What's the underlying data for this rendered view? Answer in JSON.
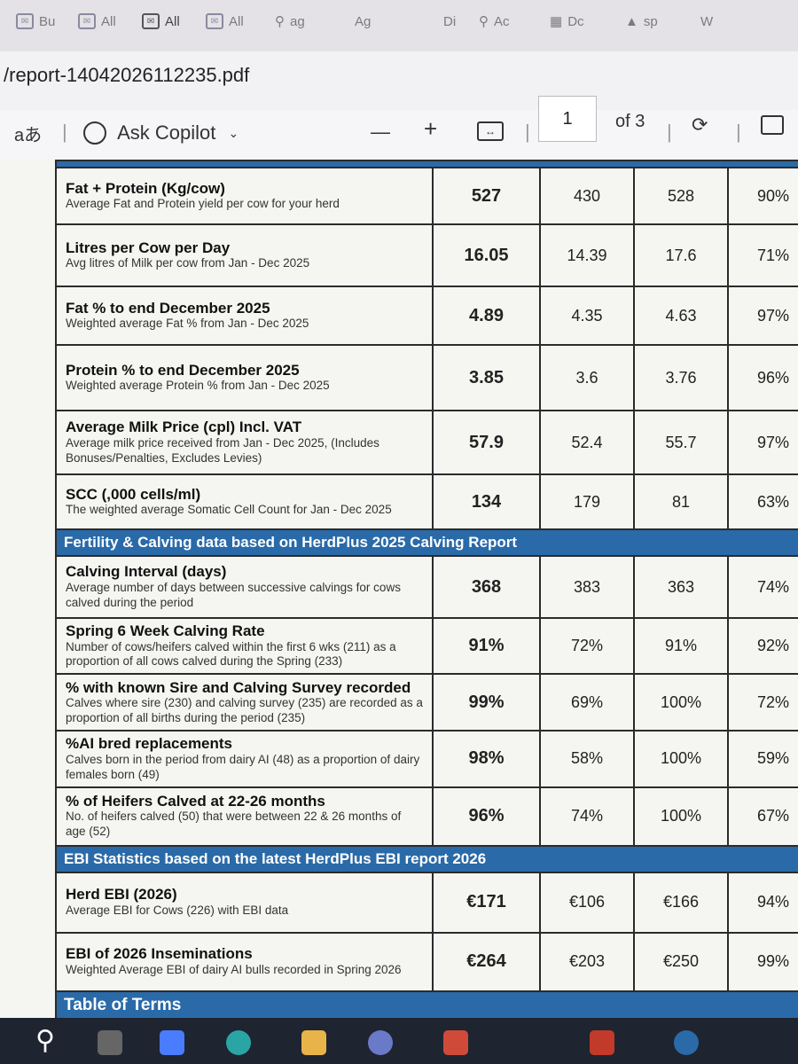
{
  "browser": {
    "tabs": [
      "Bu",
      "All",
      "All",
      "All",
      "ag",
      "Ag",
      "Di",
      "Ac",
      "Dc",
      "sp",
      "W"
    ],
    "url": "/report-14042026112235.pdf"
  },
  "pdf_toolbar": {
    "read_aloud_label": "aあ",
    "copilot_label": "Ask Copilot",
    "zoom_out": "—",
    "zoom_in": "+",
    "current_page": "1",
    "page_total": "of 3"
  },
  "report": {
    "rows": [
      {
        "label": "Fat + Protein (Kg/cow)",
        "sub": "Average Fat and Protein yield per cow for your herd",
        "v1": "527",
        "v2": "430",
        "v3": "528",
        "v4": "90%"
      },
      {
        "label": "Litres per Cow per Day",
        "sub": "Avg litres of Milk per cow from Jan - Dec 2025",
        "v1": "16.05",
        "v2": "14.39",
        "v3": "17.6",
        "v4": "71%"
      },
      {
        "label": "Fat % to end December 2025",
        "sub": "Weighted average Fat % from Jan - Dec 2025",
        "v1": "4.89",
        "v2": "4.35",
        "v3": "4.63",
        "v4": "97%"
      },
      {
        "label": "Protein % to end December 2025",
        "sub": "Weighted average Protein % from Jan - Dec 2025",
        "v1": "3.85",
        "v2": "3.6",
        "v3": "3.76",
        "v4": "96%"
      },
      {
        "label": "Average Milk Price (cpl) Incl. VAT",
        "sub": "Average milk price received from Jan - Dec 2025, (Includes Bonuses/Penalties, Excludes Levies)",
        "v1": "57.9",
        "v2": "52.4",
        "v3": "55.7",
        "v4": "97%"
      },
      {
        "label": "SCC (,000 cells/ml)",
        "sub": "The weighted average Somatic Cell Count for Jan - Dec 2025",
        "v1": "134",
        "v2": "179",
        "v3": "81",
        "v4": "63%"
      }
    ],
    "section_fertility": "Fertility & Calving data based on HerdPlus 2025 Calving Report",
    "fertility_rows": [
      {
        "label": "Calving Interval (days)",
        "sub": "Average number of days between successive calvings for cows calved during the period",
        "v1": "368",
        "v2": "383",
        "v3": "363",
        "v4": "74%"
      },
      {
        "label": "Spring 6 Week Calving Rate",
        "sub": "Number of cows/heifers calved within the first 6 wks (211) as a proportion of all cows calved during the Spring (233)",
        "v1": "91%",
        "v2": "72%",
        "v3": "91%",
        "v4": "92%"
      },
      {
        "label": "% with known Sire and Calving Survey recorded",
        "sub": "Calves where sire (230) and calving survey (235) are recorded as a proportion of all births during the period (235)",
        "v1": "99%",
        "v2": "69%",
        "v3": "100%",
        "v4": "72%"
      },
      {
        "label": "%AI bred replacements",
        "sub": "Calves born in the period from dairy AI (48) as a proportion of dairy females born (49)",
        "v1": "98%",
        "v2": "58%",
        "v3": "100%",
        "v4": "59%"
      },
      {
        "label": "% of Heifers Calved at 22-26 months",
        "sub": "No. of heifers calved (50) that were between 22 & 26 months of age (52)",
        "v1": "96%",
        "v2": "74%",
        "v3": "100%",
        "v4": "67%"
      }
    ],
    "section_ebi": "EBI Statistics based on the latest HerdPlus EBI report 2026",
    "ebi_rows": [
      {
        "label": "Herd EBI (2026)",
        "sub": "Average EBI for Cows (226) with EBI data",
        "v1": "€171",
        "v2": "€106",
        "v3": "€166",
        "v4": "94%"
      },
      {
        "label": "EBI of 2026 Inseminations",
        "sub": "Weighted Average EBI of dairy AI bulls recorded in Spring 2026",
        "v1": "€264",
        "v2": "€203",
        "v3": "€250",
        "v4": "99%"
      }
    ],
    "section_terms": "Table of Terms"
  },
  "colors": {
    "section_blue": "#2a6aa8",
    "taskbar": "#1e2430"
  }
}
